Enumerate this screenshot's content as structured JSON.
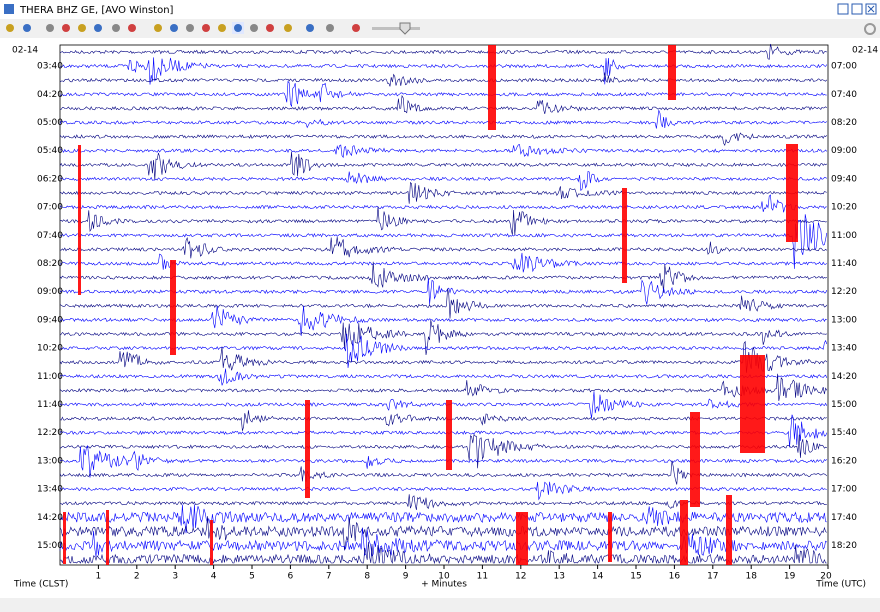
{
  "window": {
    "title": "THERA BHZ GE, [AVO Winston]"
  },
  "plot": {
    "left_date": "02-14",
    "right_date": "02-14",
    "left_times": [
      "03:40",
      "04:20",
      "05:00",
      "05:40",
      "06:20",
      "07:00",
      "07:40",
      "08:20",
      "09:00",
      "09:40",
      "10:20",
      "11:00",
      "11:40",
      "12:20",
      "13:00",
      "13:40",
      "14:20",
      "15:00"
    ],
    "right_times": [
      "07:00",
      "07:40",
      "08:20",
      "09:00",
      "09:40",
      "10:20",
      "11:00",
      "11:40",
      "12:20",
      "13:00",
      "13:40",
      "14:20",
      "15:00",
      "15:40",
      "16:20",
      "17:00",
      "17:40",
      "18:20"
    ],
    "xticks": [
      1,
      2,
      3,
      4,
      5,
      6,
      7,
      8,
      9,
      10,
      11,
      12,
      13,
      14,
      15,
      16,
      17,
      18,
      19,
      20
    ],
    "left_axis_label": "Time (CLST)",
    "x_axis_label": "+ Minutes",
    "right_axis_label": "Time (UTC)"
  }
}
